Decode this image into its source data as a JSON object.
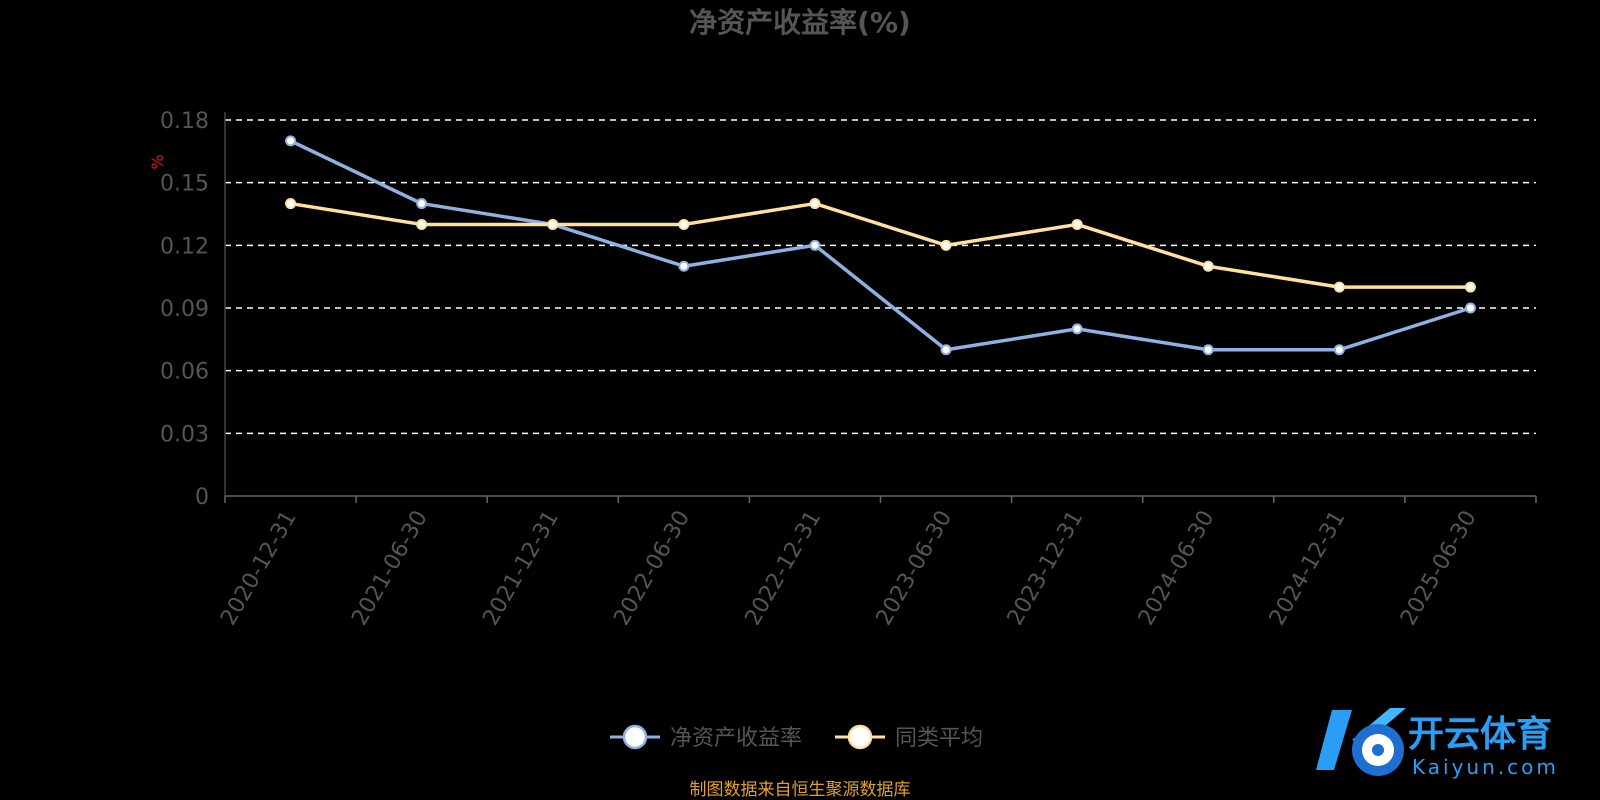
{
  "chart_data": {
    "type": "line",
    "title": "净资产收益率(%)",
    "ylabel": "%",
    "x": [
      "2020-12-31",
      "2021-06-30",
      "2021-12-31",
      "2022-06-30",
      "2022-12-31",
      "2023-06-30",
      "2023-12-31",
      "2024-06-30",
      "2024-12-31",
      "2025-06-30"
    ],
    "ylim": [
      0,
      0.18
    ],
    "yticks": [
      "0",
      "0.03",
      "0.06",
      "0.09",
      "0.12",
      "0.15",
      "0.18"
    ],
    "grid": "dashed-horizontal",
    "legend_position": "bottom-center",
    "series": [
      {
        "name": "净资产收益率",
        "color": "#8fb0e0",
        "values": [
          0.17,
          0.14,
          0.13,
          0.11,
          0.12,
          0.07,
          0.08,
          0.07,
          0.07,
          0.09
        ]
      },
      {
        "name": "同类平均",
        "color": "#ffe0a0",
        "values": [
          0.14,
          0.13,
          0.13,
          0.13,
          0.14,
          0.12,
          0.13,
          0.11,
          0.1,
          0.1
        ]
      }
    ]
  },
  "footer": {
    "source": "制图数据来自恒生聚源数据库",
    "source_color": "#e0a030"
  },
  "watermark": {
    "brand_cn": "开云体育",
    "brand_en": "Kaiyun.com",
    "brand_color": "#2a9df4"
  }
}
